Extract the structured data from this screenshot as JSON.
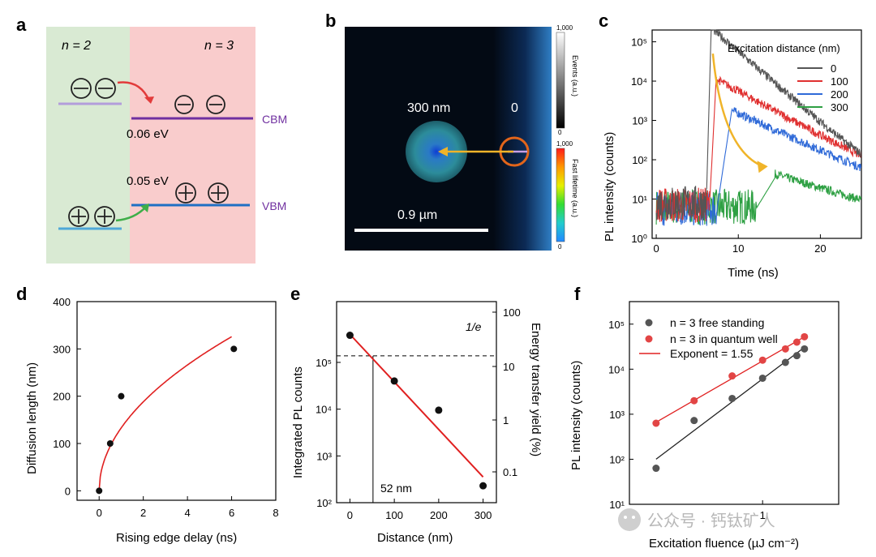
{
  "panels": {
    "a": {
      "label": "a",
      "left_region": "n = 2",
      "right_region": "n = 3",
      "cbm_label": "CBM",
      "vbm_label": "VBM",
      "cbm_offset": "0.06 eV",
      "vbm_offset": "0.05 eV",
      "colors": {
        "left_bg": "#d9ead3",
        "right_bg": "#f9cccc",
        "cbm": "#7030a0",
        "vbm": "#1f6fc4",
        "n2_cbm": "#b39ddb",
        "n2_vbm": "#4fa8d8",
        "red_arrow": "#e23b3b",
        "green_arrow": "#3fae49"
      }
    },
    "b": {
      "label": "b",
      "distance_label": "300 nm",
      "origin_label": "0",
      "scalebar_label": "0.9 µm",
      "cb1_top": "1,000",
      "cb1_bottom": "0",
      "cb1_title": "Events (a.u.)",
      "cb2_top": "1,000",
      "cb2_bottom": "0",
      "cb2_title": "Fast lifetime (a.u.)"
    },
    "c": {
      "label": "c"
    },
    "d": {
      "label": "d"
    },
    "e": {
      "label": "e",
      "line_label": "1/e",
      "marker_label": "52 nm"
    },
    "f": {
      "label": "f"
    }
  },
  "watermark": "公众号 · 钙钛矿人",
  "chart_data": [
    {
      "panel": "c",
      "type": "line",
      "title": "",
      "xlabel": "Time (ns)",
      "ylabel": "PL intensity (counts)",
      "xlim": [
        -0.5,
        25
      ],
      "ylim_log10": [
        0,
        5.3
      ],
      "x_ticks": [
        0,
        10,
        20
      ],
      "x_tick_labels": [
        "0",
        "10",
        "20"
      ],
      "y_ticks_log10": [
        0,
        1,
        2,
        3,
        4,
        5
      ],
      "y_tick_labels": [
        "10⁰",
        "10¹",
        "10²",
        "10³",
        "10⁴",
        "10⁵"
      ],
      "legend_title": "Excitation distance (nm)",
      "legend_position": "top-right",
      "series": [
        {
          "name": "0",
          "color": "#555555",
          "peak_time": 6.7,
          "peak_log10": 5.35,
          "rise_time": 6.1,
          "tau": 2.4,
          "noise_log10": 0.9,
          "tail_log10": 2.15
        },
        {
          "name": "100",
          "color": "#e03030",
          "peak_time": 7.3,
          "peak_log10": 4.05,
          "rise_time": 6.5,
          "tau": 3.8,
          "noise_log10": 0.85,
          "tail_log10": 1.9
        },
        {
          "name": "200",
          "color": "#2f6ad8",
          "peak_time": 9.2,
          "peak_log10": 3.25,
          "rise_time": 7.4,
          "tau": 4.5,
          "noise_log10": 0.75,
          "tail_log10": 1.55
        },
        {
          "name": "300",
          "color": "#2ea043",
          "peak_time": 14.5,
          "peak_log10": 1.55,
          "rise_time": 12.3,
          "tau": 6,
          "noise_log10": 0.8,
          "tail_log10": 0.9
        }
      ],
      "annotation": "yellow arrow tracing delayed rise"
    },
    {
      "panel": "d",
      "type": "scatter",
      "xlabel": "Rising edge delay (ns)",
      "ylabel": "Diffusion length (nm)",
      "xlim": [
        -1,
        8
      ],
      "ylim": [
        -20,
        400
      ],
      "x_ticks": [
        0,
        2,
        4,
        6,
        8
      ],
      "y_ticks": [
        0,
        100,
        200,
        300,
        400
      ],
      "points": [
        [
          0,
          0
        ],
        [
          0.5,
          100
        ],
        [
          1,
          200
        ],
        [
          6.1,
          300
        ]
      ],
      "fit": {
        "color": "#e02020",
        "form": "a*sqrt(x)",
        "a": 133,
        "x_range": [
          0,
          6
        ]
      }
    },
    {
      "panel": "e",
      "type": "scatter",
      "xlabel": "Distance (nm)",
      "ylabel": "Integrated PL counts",
      "ylabel_right": "Energy transfer yield (%)",
      "xlim": [
        -30,
        330
      ],
      "ylim_log10": [
        2,
        6.3
      ],
      "x_ticks": [
        0,
        100,
        200,
        300
      ],
      "y_ticks_log10": [
        2,
        3,
        4,
        5
      ],
      "y_tick_labels": [
        "10²",
        "10³",
        "10⁴",
        "10⁵"
      ],
      "right_ticks": [
        "100",
        "10",
        "1",
        "0.1"
      ],
      "points": [
        [
          0,
          380000
        ],
        [
          100,
          40000
        ],
        [
          200,
          9500
        ],
        [
          300,
          230
        ]
      ],
      "fit": {
        "color": "#e02020",
        "x_range": [
          0,
          300
        ],
        "log10_start": 5.6,
        "log10_end": 2.55
      },
      "dashed_line_log10": 5.14,
      "vertical_line_x": 52
    },
    {
      "panel": "f",
      "type": "scatter",
      "xlabel": "Excitation fluence (µJ cm⁻²)",
      "ylabel": "PL intensity (counts)",
      "xlim_log10": [
        -0.35,
        0.2
      ],
      "ylim_log10": [
        1,
        5.5
      ],
      "y_ticks_log10": [
        1,
        2,
        3,
        4,
        5
      ],
      "y_tick_labels": [
        "10¹",
        "10²",
        "10³",
        "10⁴",
        "10⁵"
      ],
      "x_tick_label": "1",
      "legend_position": "top-left",
      "series": [
        {
          "name": "n = 3 free standing",
          "color": "#555555",
          "points_log10": [
            [
              -0.28,
              1.8
            ],
            [
              -0.18,
              2.86
            ],
            [
              -0.08,
              3.35
            ],
            [
              0,
              3.8
            ],
            [
              0.06,
              4.15
            ],
            [
              0.09,
              4.3
            ],
            [
              0.11,
              4.45
            ]
          ]
        },
        {
          "name": "n = 3 in quantum well",
          "color": "#e24545",
          "points_log10": [
            [
              -0.28,
              2.8
            ],
            [
              -0.18,
              3.3
            ],
            [
              -0.08,
              3.85
            ],
            [
              0,
              4.2
            ],
            [
              0.06,
              4.45
            ],
            [
              0.09,
              4.6
            ],
            [
              0.11,
              4.72
            ]
          ]
        }
      ],
      "fit_label": "Exponent = 1.55",
      "fit_color": "#e02020"
    }
  ]
}
